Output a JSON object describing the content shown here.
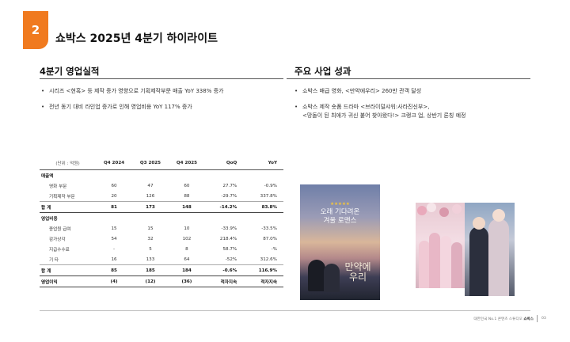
{
  "header": {
    "section_number": "2",
    "title": "쇼박스 2025년 4분기 하이라이트"
  },
  "left": {
    "title": "4분기 영업실적",
    "bullets": [
      "시리즈 <현혹> 등 제작 증가 영향으로 기획제작부문 매출 YoY 338% 증가",
      "전년 동기 대비 라인업 증가로 인해 영업비용 YoY 117% 증가"
    ],
    "table": {
      "unit": "(단위 : 억원)",
      "columns": [
        "Q4 2024",
        "Q3 2025",
        "Q4 2025",
        "QoQ",
        "YoY"
      ],
      "rows": [
        {
          "label": "매출액",
          "type": "group",
          "cells": [
            "",
            "",
            "",
            "",
            ""
          ]
        },
        {
          "label": "영화 부문",
          "type": "item",
          "cells": [
            "60",
            "47",
            "60",
            "27.7%",
            "-0.9%"
          ]
        },
        {
          "label": "기획제작 부문",
          "type": "item",
          "cells": [
            "20",
            "126",
            "88",
            "-29.7%",
            "337.8%"
          ]
        },
        {
          "label": "합 계",
          "type": "total",
          "cells": [
            "81",
            "173",
            "148",
            "-14.2%",
            "83.8%"
          ]
        },
        {
          "label": "영업비용",
          "type": "group",
          "cells": [
            "",
            "",
            "",
            "",
            ""
          ]
        },
        {
          "label": "종업원 급여",
          "type": "item",
          "cells": [
            "15",
            "15",
            "10",
            "-33.9%",
            "-33.5%"
          ]
        },
        {
          "label": "감가상각",
          "type": "item",
          "cells": [
            "54",
            "32",
            "102",
            "218.4%",
            "87.0%"
          ]
        },
        {
          "label": "지급수수료",
          "type": "item",
          "cells": [
            "-",
            "5",
            "8",
            "58.7%",
            "-%"
          ]
        },
        {
          "label": "기 타",
          "type": "item",
          "cells": [
            "16",
            "133",
            "64",
            "-52%",
            "312.6%"
          ]
        },
        {
          "label": "합 계",
          "type": "total",
          "cells": [
            "85",
            "185",
            "184",
            "-0.6%",
            "116.9%"
          ]
        },
        {
          "label": "영업이익",
          "type": "last",
          "cells": [
            "(4)",
            "(12)",
            "(36)",
            "적자지속",
            "적자지속"
          ]
        }
      ]
    }
  },
  "right": {
    "title": "주요 사업 성과",
    "bullets": [
      {
        "line1": "쇼박스 배급 영화, <만약에우리> 260만 관객 달성",
        "line2": ""
      },
      {
        "line1": "쇼박스 제작 숏폼 드라마 <브라이덜샤워:사라진신부>,",
        "line2": "<망돌이 된 최애가 귀신 붙어 찾아왔다!> 크랭크 업, 상반기 론칭 예정"
      }
    ],
    "poster1": {
      "line1": "오래 기다려온",
      "line2": "겨울 로맨스",
      "stars": "★★★★★",
      "title_line1": "만약에",
      "title_line2": "우리"
    }
  },
  "footer": {
    "prefix": "대한민국 No.1 콘텐츠 스튜디오 ",
    "brand": "쇼박스",
    "page": "03"
  },
  "colors": {
    "accent": "#f07a1f"
  }
}
